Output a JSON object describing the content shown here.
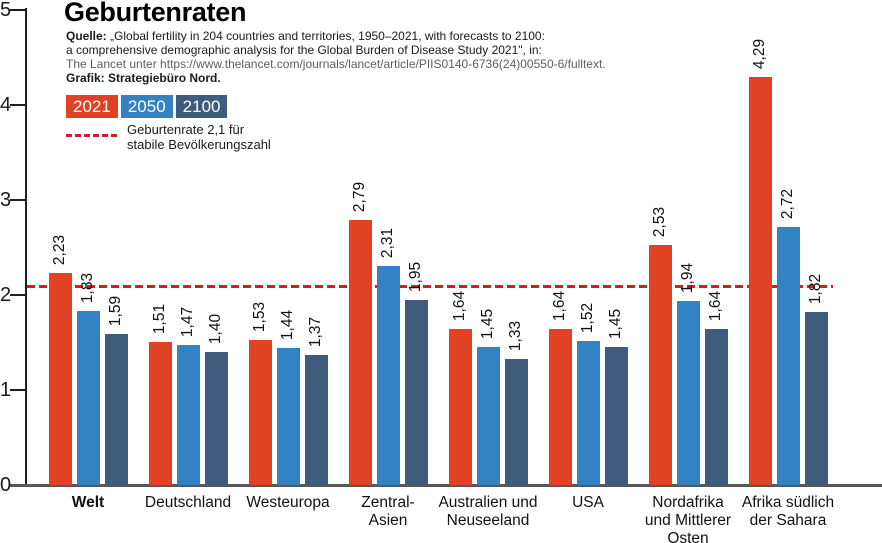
{
  "title": "Geburtenraten",
  "source": {
    "label": "Quelle:",
    "line1": "„Global fertility in 204 countries and territories, 1950–2021, with forecasts to 2100:",
    "line2": "a comprehensive demographic analysis for the Global Burden of Disease Study 2021\", in:",
    "line3": "The Lancet unter https://www.thelancet.com/journals/lancet/article/PIIS0140-6736(24)00550-6/fulltext.",
    "credit": "Grafik: Strategiebüro Nord."
  },
  "legend": {
    "items": [
      {
        "label": "2021",
        "color": "#e04223"
      },
      {
        "label": "2050",
        "color": "#3383c4"
      },
      {
        "label": "2100",
        "color": "#3f5c7c"
      }
    ],
    "threshold_label": "Geburtenrate 2,1 für\nstabile Bevölkerungszahl"
  },
  "chart_data": {
    "type": "bar",
    "title": "Geburtenraten",
    "categories": [
      "Welt",
      "Deutschland",
      "Westeuropa",
      "Zentral-\nAsien",
      "Australien und\nNeuseeland",
      "USA",
      "Nordafrika\nund Mittlerer\nOsten",
      "Afrika südlich\nder Sahara"
    ],
    "emphasized_category": "Welt",
    "series": [
      {
        "name": "2021",
        "color": "#e04223",
        "values": [
          2.23,
          1.51,
          1.53,
          2.79,
          1.64,
          1.64,
          2.53,
          4.29
        ]
      },
      {
        "name": "2050",
        "color": "#3383c4",
        "values": [
          1.83,
          1.47,
          1.44,
          2.31,
          1.45,
          1.52,
          1.94,
          2.72
        ]
      },
      {
        "name": "2100",
        "color": "#3f5c7c",
        "values": [
          1.59,
          1.4,
          1.37,
          1.95,
          1.33,
          1.45,
          1.64,
          1.82
        ]
      }
    ],
    "threshold": {
      "value": 2.1,
      "color": "#cb2026"
    },
    "ylim": [
      0,
      5
    ],
    "yticks": [
      0,
      1,
      2,
      3,
      4,
      5
    ],
    "xlabel": "",
    "ylabel": "",
    "grid": false,
    "legend_position": "top-left",
    "decimal_separator": ","
  }
}
